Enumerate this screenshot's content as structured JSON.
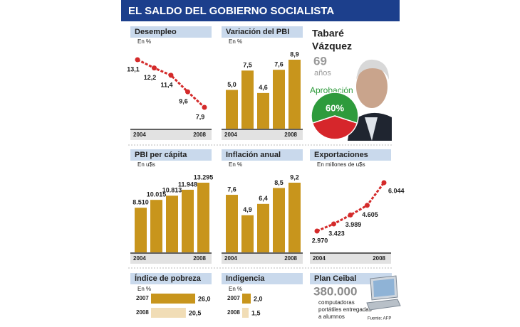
{
  "title": "EL SALDO DEL GOBIERNO SOCIALISTA",
  "profile": {
    "name": [
      "Tabaré",
      "Vázquez"
    ],
    "age": 69,
    "age_unit": "años"
  },
  "plan_ceibal": {
    "title": "Plan Ceibal",
    "count": "380.000",
    "lines": [
      "computadoras",
      "portátiles entregadas",
      "a alumnos"
    ]
  },
  "source": "Fuente: AFP",
  "chart_data": [
    {
      "type": "line",
      "title": "Desempleo",
      "subtitle": "En %",
      "categories": [
        "2004",
        null,
        null,
        null,
        "2008"
      ],
      "values": [
        13.1,
        12.2,
        11.4,
        9.6,
        7.9
      ],
      "value_labels": [
        "13,1",
        "12,2",
        "11,4",
        "9,6",
        "7,9"
      ],
      "color": "#d42a2a"
    },
    {
      "type": "bar",
      "title": "Variación del PBI",
      "subtitle": "En %",
      "categories": [
        "2004",
        null,
        null,
        null,
        "2008"
      ],
      "values": [
        5.0,
        7.5,
        4.6,
        7.6,
        8.9
      ],
      "value_labels": [
        "5,0",
        "7,5",
        "4,6",
        "7,6",
        "8,9"
      ],
      "color": "#c8951c"
    },
    {
      "type": "pie",
      "title": "Aprobación",
      "values": [
        60,
        40
      ],
      "value_labels": [
        "60%",
        null
      ],
      "colors": [
        "#2e9b3c",
        "#d6262b"
      ]
    },
    {
      "type": "bar",
      "title": "PBI per cápita",
      "subtitle": "En u$s",
      "categories": [
        "2004",
        null,
        null,
        null,
        "2008"
      ],
      "values": [
        8510,
        10015,
        10813,
        11948,
        13295
      ],
      "value_labels": [
        "8.510",
        "10.015",
        "10.813",
        "11.948",
        "13.295"
      ],
      "color": "#c8951c"
    },
    {
      "type": "bar",
      "title": "Inflación anual",
      "subtitle": "En %",
      "categories": [
        "2004",
        null,
        null,
        null,
        "2008"
      ],
      "values": [
        7.6,
        4.9,
        6.4,
        8.5,
        9.2
      ],
      "value_labels": [
        "7,6",
        "4,9",
        "6,4",
        "8,5",
        "9,2"
      ],
      "color": "#c8951c"
    },
    {
      "type": "line",
      "title": "Exportaciones",
      "subtitle": "En millones de u$s",
      "categories": [
        "2004",
        null,
        null,
        null,
        "2008"
      ],
      "values": [
        2970,
        3423,
        3989,
        4605,
        6044
      ],
      "value_labels": [
        "2.970",
        "3.423",
        "3.989",
        "4.605",
        "6.044"
      ],
      "color": "#d42a2a"
    },
    {
      "type": "hbar",
      "title": "Índice de pobreza",
      "subtitle": "En %",
      "categories": [
        "2007",
        "2008"
      ],
      "values": [
        26.0,
        20.5
      ],
      "value_labels": [
        "26,0",
        "20,5"
      ],
      "colors": [
        "#c8951c",
        "#f1ddb6"
      ]
    },
    {
      "type": "hbar",
      "title": "Indigencia",
      "subtitle": "En %",
      "categories": [
        "2007",
        "2008"
      ],
      "values": [
        2.0,
        1.5
      ],
      "value_labels": [
        "2,0",
        "1,5"
      ],
      "colors": [
        "#c8951c",
        "#f1ddb6"
      ]
    }
  ]
}
